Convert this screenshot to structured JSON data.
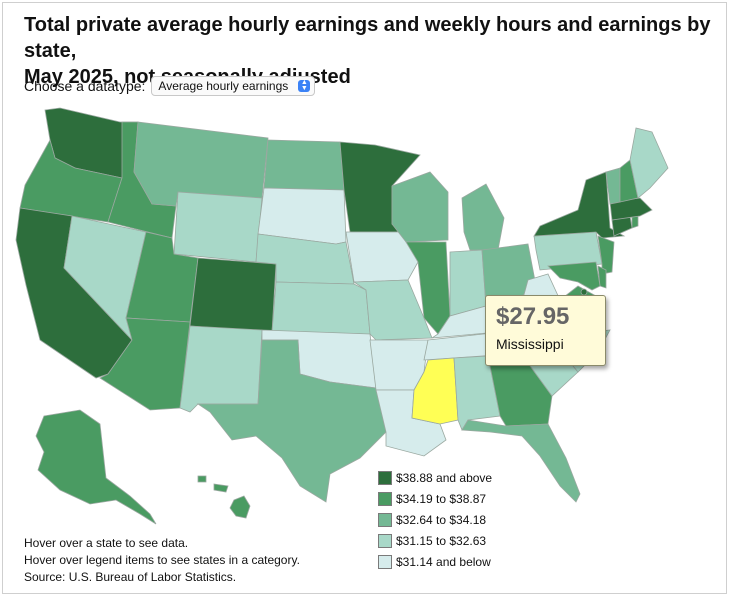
{
  "title": {
    "line1": "Total private average hourly earnings and weekly hours and earnings by state,",
    "line2": "May 2025, not seasonally adjusted"
  },
  "datatype": {
    "label": "Choose a datatype:",
    "selected": "Average hourly earnings"
  },
  "colors": {
    "highlight": "#ffff55",
    "bins": [
      "#2d6e3c",
      "#4a9b62",
      "#74b894",
      "#a8d8c8",
      "#d6ecec"
    ]
  },
  "legend": [
    {
      "label": "$38.88 and above",
      "color": "#2d6e3c"
    },
    {
      "label": "$34.19 to $38.87",
      "color": "#4a9b62"
    },
    {
      "label": "$32.64 to $34.18",
      "color": "#74b894"
    },
    {
      "label": "$31.15 to $32.63",
      "color": "#a8d8c8"
    },
    {
      "label": "$31.14 and below",
      "color": "#d6ecec"
    }
  ],
  "tooltip": {
    "value": "$27.95",
    "state": "Mississippi"
  },
  "notes": [
    "Hover over a state to see data.",
    "Hover over legend items to see states in a category.",
    "Source: U.S. Bureau of Labor Statistics."
  ],
  "state_bins": {
    "washington": 0,
    "oregon": 1,
    "california": 0,
    "nevada": 3,
    "idaho": 1,
    "montana": 2,
    "wyoming": 3,
    "utah": 1,
    "arizona": 1,
    "colorado": 0,
    "new-mexico": 3,
    "north-dakota": 2,
    "south-dakota": 4,
    "nebraska": 3,
    "kansas": 3,
    "oklahoma": 4,
    "texas": 2,
    "minnesota": 0,
    "iowa": 4,
    "missouri": 3,
    "arkansas": 4,
    "louisiana": 4,
    "wisconsin": 2,
    "illinois": 1,
    "michigan": 2,
    "indiana": 3,
    "ohio": 2,
    "kentucky": 4,
    "tennessee": 4,
    "mississippi": "highlight",
    "alabama": 3,
    "georgia": 1,
    "florida": 2,
    "south-carolina": 3,
    "north-carolina": 3,
    "virginia": 1,
    "west-virginia": 4,
    "pennsylvania": 3,
    "new-york": 0,
    "new-jersey": 1,
    "delaware": 1,
    "maryland": 1,
    "dc": 0,
    "connecticut": 0,
    "rhode-island": 1,
    "massachusetts": 0,
    "vermont": 2,
    "new-hampshire": 1,
    "maine": 3,
    "alaska": 1,
    "hawaii": 1
  }
}
